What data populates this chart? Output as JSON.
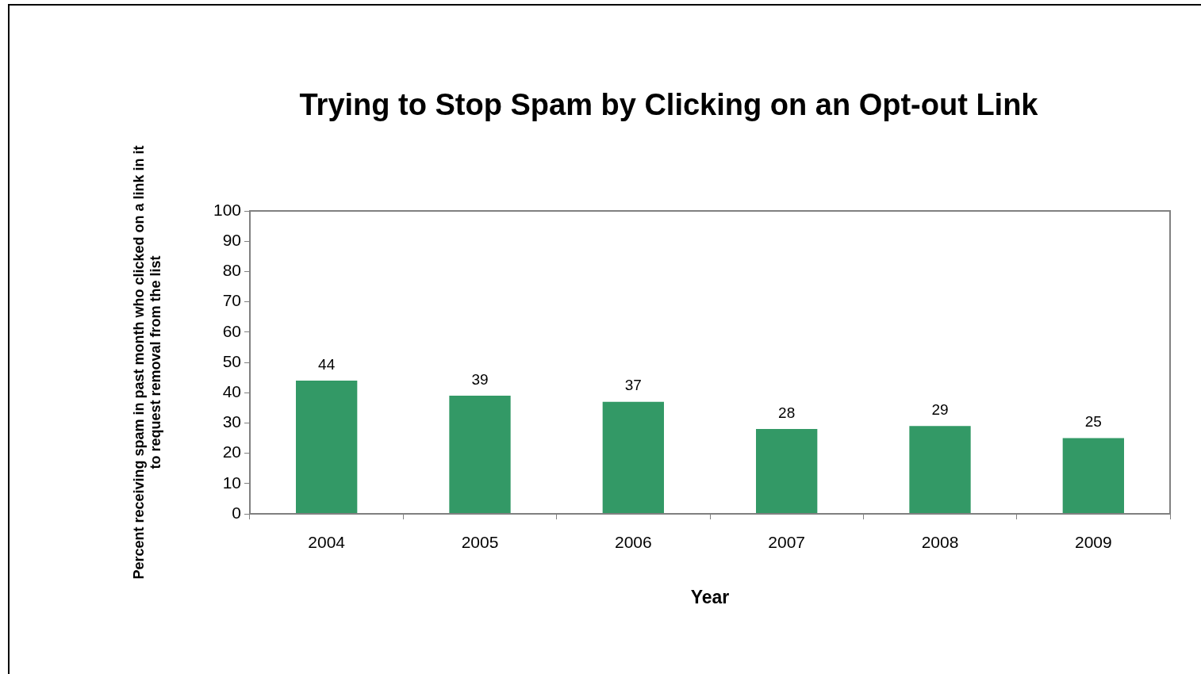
{
  "chart_data": {
    "type": "bar",
    "title": "Trying to Stop Spam by Clicking on an Opt-out Link",
    "xlabel": "Year",
    "ylabel": "Percent receiving spam in past month who clicked on a link in it to request removal from the list",
    "categories": [
      "2004",
      "2005",
      "2006",
      "2007",
      "2008",
      "2009"
    ],
    "values": [
      44,
      39,
      37,
      28,
      29,
      25
    ],
    "color": "#339966",
    "ylim": [
      0,
      100
    ],
    "yticks": [
      0,
      10,
      20,
      30,
      40,
      50,
      60,
      70,
      80,
      90,
      100
    ],
    "data_labels": true
  }
}
